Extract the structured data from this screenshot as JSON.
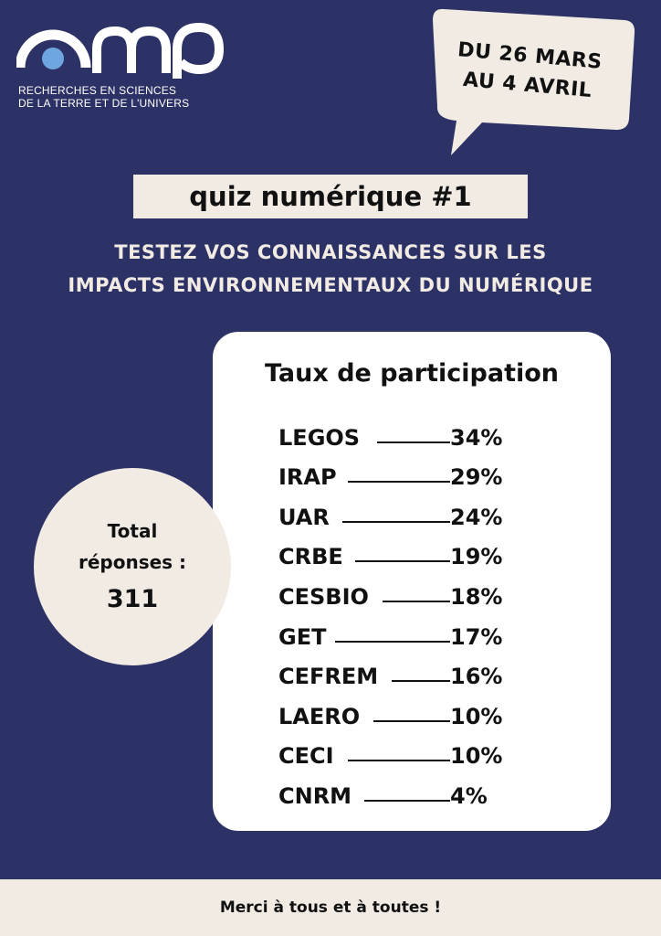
{
  "logo": {
    "name": "omp",
    "line1": "RECHERCHES EN SCIENCES",
    "line2": "DE LA TERRE ET DE L'UNIVERS"
  },
  "dates": {
    "line1": "DU 26 MARS",
    "line2": "AU 4 AVRIL"
  },
  "title": "quiz numérique #1",
  "subtitle": {
    "line1": "TESTEZ VOS CONNAISSANCES SUR LES",
    "line2": "IMPACTS ENVIRONNEMENTAUX DU NUMÉRIQUE"
  },
  "participation": {
    "heading": "Taux de participation",
    "rows": [
      {
        "label": "LEGOS",
        "value": "34%"
      },
      {
        "label": "IRAP",
        "value": "29%"
      },
      {
        "label": "UAR",
        "value": "24%"
      },
      {
        "label": "CRBE",
        "value": "19%"
      },
      {
        "label": "CESBIO",
        "value": "18%"
      },
      {
        "label": "GET",
        "value": "17%"
      },
      {
        "label": "CEFREM",
        "value": "16%"
      },
      {
        "label": "LAERO",
        "value": "10%"
      },
      {
        "label": "CECI",
        "value": "10%"
      },
      {
        "label": "CNRM",
        "value": "4%"
      }
    ]
  },
  "total": {
    "label_line1": "Total",
    "label_line2": "réponses :",
    "value": "311"
  },
  "footer": "Merci à tous et à toutes !",
  "colors": {
    "background": "#2d3266",
    "cream": "#f1ebe3",
    "logo_dot": "#6ea7e0"
  }
}
